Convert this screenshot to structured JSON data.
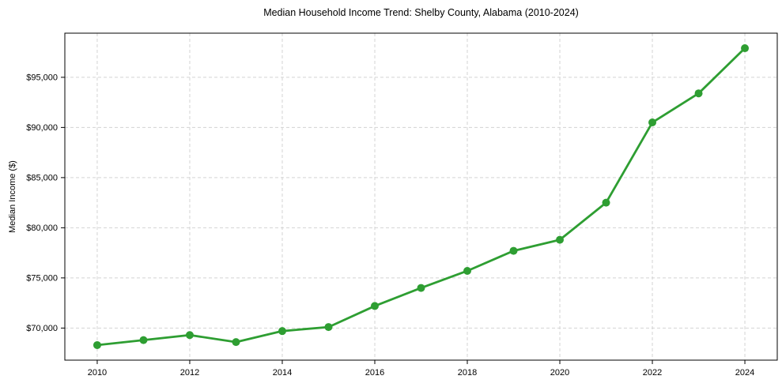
{
  "chart_data": {
    "type": "line",
    "title": "Median Household Income Trend: Shelby County, Alabama (2010-2024)",
    "xlabel": "",
    "ylabel": "Median Income ($)",
    "x": [
      2010,
      2011,
      2012,
      2013,
      2014,
      2015,
      2016,
      2017,
      2018,
      2019,
      2020,
      2021,
      2022,
      2023,
      2024
    ],
    "series": [
      {
        "name": "Median Household Income",
        "values": [
          68300,
          68800,
          69300,
          68600,
          69700,
          70100,
          72200,
          74000,
          75700,
          77700,
          78800,
          82500,
          90500,
          93400,
          97900
        ]
      }
    ],
    "xlim": [
      2009.3,
      2024.7
    ],
    "ylim": [
      66800,
      99400
    ],
    "x_ticks": [
      2010,
      2012,
      2014,
      2016,
      2018,
      2020,
      2022,
      2024
    ],
    "x_tick_labels": [
      "2010",
      "2012",
      "2014",
      "2016",
      "2018",
      "2020",
      "2022",
      "2024"
    ],
    "y_ticks": [
      70000,
      75000,
      80000,
      85000,
      90000,
      95000
    ],
    "y_tick_labels": [
      "$70,000",
      "$75,000",
      "$80,000",
      "$85,000",
      "$90,000",
      "$95,000"
    ],
    "grid": true,
    "legend": false,
    "line_color": "#2e9e32",
    "marker_color": "#2e9e32",
    "marker_radius": 5,
    "line_width": 2.8,
    "grid_color": "#d3d3d3",
    "axis_color": "#000000",
    "background": "#ffffff"
  }
}
